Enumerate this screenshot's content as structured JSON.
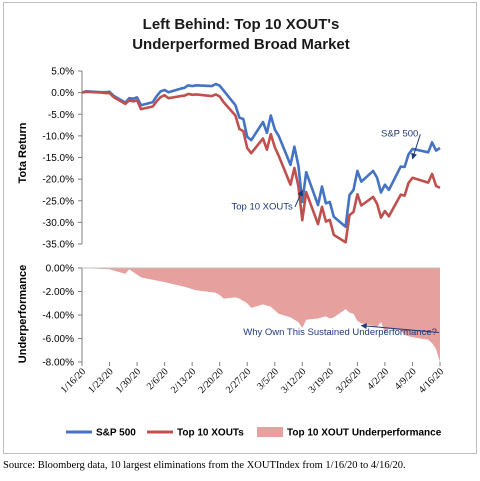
{
  "chart_data": [
    {
      "type": "line",
      "title_line1": "Left Behind: Top 10 XOUT's",
      "title_line2": "Underperformed Broad Market",
      "ylabel": "Tota Return",
      "ylim": [
        -35,
        5
      ],
      "yticks": [
        "5.0%",
        "0.0%",
        "-5.0%",
        "-10.0%",
        "-15.0%",
        "-20.0%",
        "-25.0%",
        "-30.0%",
        "-35.0%"
      ],
      "x_start": "2020-01-16",
      "x_end": "2020-04-16",
      "series": [
        {
          "name": "S&P 500",
          "color": "#4472c4",
          "points": [
            [
              "2020-01-16",
              0
            ],
            [
              "2020-01-17",
              0.3
            ],
            [
              "2020-01-21",
              0.1
            ],
            [
              "2020-01-22",
              0.1
            ],
            [
              "2020-01-23",
              0.2
            ],
            [
              "2020-01-24",
              -0.7
            ],
            [
              "2020-01-27",
              -2.3
            ],
            [
              "2020-01-28",
              -1.3
            ],
            [
              "2020-01-29",
              -1.4
            ],
            [
              "2020-01-30",
              -1.1
            ],
            [
              "2020-01-31",
              -2.9
            ],
            [
              "2020-02-03",
              -2.2
            ],
            [
              "2020-02-04",
              -0.8
            ],
            [
              "2020-02-05",
              0.3
            ],
            [
              "2020-02-06",
              0.6
            ],
            [
              "2020-02-07",
              0.1
            ],
            [
              "2020-02-10",
              0.9
            ],
            [
              "2020-02-11",
              1.1
            ],
            [
              "2020-02-12",
              1.7
            ],
            [
              "2020-02-13",
              1.5
            ],
            [
              "2020-02-14",
              1.7
            ],
            [
              "2020-02-18",
              1.5
            ],
            [
              "2020-02-19",
              2.0
            ],
            [
              "2020-02-20",
              1.6
            ],
            [
              "2020-02-21",
              0.5
            ],
            [
              "2020-02-24",
              -2.9
            ],
            [
              "2020-02-25",
              -5.8
            ],
            [
              "2020-02-26",
              -6.1
            ],
            [
              "2020-02-27",
              -10.2
            ],
            [
              "2020-02-28",
              -11.0
            ],
            [
              "2020-03-02",
              -6.8
            ],
            [
              "2020-03-03",
              -9.3
            ],
            [
              "2020-03-04",
              -5.3
            ],
            [
              "2020-03-05",
              -8.5
            ],
            [
              "2020-03-06",
              -10.0
            ],
            [
              "2020-03-09",
              -16.7
            ],
            [
              "2020-03-10",
              -12.5
            ],
            [
              "2020-03-11",
              -16.9
            ],
            [
              "2020-03-12",
              -25.3
            ],
            [
              "2020-03-13",
              -18.4
            ],
            [
              "2020-03-16",
              -26.0
            ],
            [
              "2020-03-17",
              -21.7
            ],
            [
              "2020-03-18",
              -25.6
            ],
            [
              "2020-03-19",
              -25.3
            ],
            [
              "2020-03-20",
              -28.7
            ],
            [
              "2020-03-23",
              -31.0
            ],
            [
              "2020-03-24",
              -23.7
            ],
            [
              "2020-03-25",
              -22.5
            ],
            [
              "2020-03-26",
              -18.1
            ],
            [
              "2020-03-27",
              -20.6
            ],
            [
              "2020-03-30",
              -18.1
            ],
            [
              "2020-03-31",
              -19.7
            ],
            [
              "2020-04-01",
              -23.1
            ],
            [
              "2020-04-02",
              -21.3
            ],
            [
              "2020-04-03",
              -22.5
            ],
            [
              "2020-04-06",
              -17.1
            ],
            [
              "2020-04-07",
              -17.2
            ],
            [
              "2020-04-08",
              -14.3
            ],
            [
              "2020-04-09",
              -13.0
            ],
            [
              "2020-04-13",
              -13.8
            ],
            [
              "2020-04-14",
              -11.5
            ],
            [
              "2020-04-15",
              -13.4
            ],
            [
              "2020-04-16",
              -12.8
            ]
          ]
        },
        {
          "name": "Top 10 XOUTs",
          "color": "#c0504d",
          "points": [
            [
              "2020-01-16",
              0
            ],
            [
              "2020-01-17",
              0.2
            ],
            [
              "2020-01-21",
              0
            ],
            [
              "2020-01-22",
              -0.1
            ],
            [
              "2020-01-23",
              -0.1
            ],
            [
              "2020-01-24",
              -1.0
            ],
            [
              "2020-01-27",
              -2.6
            ],
            [
              "2020-01-28",
              -1.8
            ],
            [
              "2020-01-29",
              -2.0
            ],
            [
              "2020-01-30",
              -1.8
            ],
            [
              "2020-01-31",
              -3.8
            ],
            [
              "2020-02-03",
              -3.2
            ],
            [
              "2020-02-04",
              -2.0
            ],
            [
              "2020-02-05",
              -1.0
            ],
            [
              "2020-02-06",
              -0.6
            ],
            [
              "2020-02-07",
              -1.3
            ],
            [
              "2020-02-10",
              -0.8
            ],
            [
              "2020-02-11",
              -0.7
            ],
            [
              "2020-02-12",
              -0.3
            ],
            [
              "2020-02-13",
              -0.5
            ],
            [
              "2020-02-14",
              -0.4
            ],
            [
              "2020-02-18",
              -0.8
            ],
            [
              "2020-02-19",
              -0.4
            ],
            [
              "2020-02-20",
              -0.9
            ],
            [
              "2020-02-21",
              -2.2
            ],
            [
              "2020-02-24",
              -5.3
            ],
            [
              "2020-02-25",
              -8.4
            ],
            [
              "2020-02-26",
              -8.9
            ],
            [
              "2020-02-27",
              -12.8
            ],
            [
              "2020-02-28",
              -14.0
            ],
            [
              "2020-03-02",
              -10.6
            ],
            [
              "2020-03-03",
              -13.2
            ],
            [
              "2020-03-04",
              -9.6
            ],
            [
              "2020-03-05",
              -12.6
            ],
            [
              "2020-03-06",
              -14.6
            ],
            [
              "2020-03-09",
              -21.3
            ],
            [
              "2020-03-10",
              -17.4
            ],
            [
              "2020-03-11",
              -21.7
            ],
            [
              "2020-03-12",
              -29.5
            ],
            [
              "2020-03-13",
              -23.0
            ],
            [
              "2020-03-16",
              -30.4
            ],
            [
              "2020-03-17",
              -26.4
            ],
            [
              "2020-03-18",
              -29.8
            ],
            [
              "2020-03-19",
              -29.4
            ],
            [
              "2020-03-20",
              -32.9
            ],
            [
              "2020-03-23",
              -34.6
            ],
            [
              "2020-03-24",
              -28.3
            ],
            [
              "2020-03-25",
              -27.6
            ],
            [
              "2020-03-26",
              -23.5
            ],
            [
              "2020-03-27",
              -26.1
            ],
            [
              "2020-03-30",
              -24.1
            ],
            [
              "2020-03-31",
              -25.7
            ],
            [
              "2020-04-01",
              -28.9
            ],
            [
              "2020-04-02",
              -27.4
            ],
            [
              "2020-04-03",
              -28.6
            ],
            [
              "2020-04-06",
              -23.6
            ],
            [
              "2020-04-07",
              -23.8
            ],
            [
              "2020-04-08",
              -20.9
            ],
            [
              "2020-04-09",
              -19.7
            ],
            [
              "2020-04-13",
              -20.8
            ],
            [
              "2020-04-14",
              -18.8
            ],
            [
              "2020-04-15",
              -21.6
            ],
            [
              "2020-04-16",
              -22.0
            ]
          ]
        }
      ],
      "annotations": [
        {
          "text": "S&P 500",
          "date": "2020-04-01",
          "value": -10.2,
          "arrow_to_date": "2020-04-09",
          "arrow_to_value": -15.3
        },
        {
          "text": "Top 10 XOUTs",
          "date": "2020-02-23",
          "value": -27.0,
          "arrow_to_date": "2020-03-12",
          "arrow_to_value": -22.6
        }
      ]
    },
    {
      "type": "area",
      "ylabel": "Underperformance",
      "ylim": [
        -8,
        0
      ],
      "yticks": [
        "0.00%",
        "-2.00%",
        "-4.00%",
        "-6.00%",
        "-8.00%"
      ],
      "series": [
        {
          "name": "Top 10 XOUT Underperformance",
          "color": "#e6a09e",
          "points": [
            [
              "2020-01-16",
              0
            ],
            [
              "2020-01-23",
              -0.1
            ],
            [
              "2020-01-27",
              -0.5
            ],
            [
              "2020-01-28",
              -0.1
            ],
            [
              "2020-01-31",
              -0.8
            ],
            [
              "2020-02-03",
              -1.0
            ],
            [
              "2020-02-06",
              -1.2
            ],
            [
              "2020-02-11",
              -1.6
            ],
            [
              "2020-02-14",
              -1.9
            ],
            [
              "2020-02-19",
              -2.1
            ],
            [
              "2020-02-20",
              -2.3
            ],
            [
              "2020-02-21",
              -2.6
            ],
            [
              "2020-02-24",
              -2.5
            ],
            [
              "2020-02-25",
              -2.6
            ],
            [
              "2020-02-27",
              -3.0
            ],
            [
              "2020-02-28",
              -3.4
            ],
            [
              "2020-03-02",
              -3.1
            ],
            [
              "2020-03-04",
              -3.3
            ],
            [
              "2020-03-06",
              -3.9
            ],
            [
              "2020-03-09",
              -4.2
            ],
            [
              "2020-03-11",
              -4.6
            ],
            [
              "2020-03-12",
              -5.1
            ],
            [
              "2020-03-13",
              -4.4
            ],
            [
              "2020-03-16",
              -4.3
            ],
            [
              "2020-03-18",
              -4.1
            ],
            [
              "2020-03-19",
              -4.3
            ],
            [
              "2020-03-20",
              -4.2
            ],
            [
              "2020-03-23",
              -3.5
            ],
            [
              "2020-03-24",
              -3.8
            ],
            [
              "2020-03-25",
              -3.9
            ],
            [
              "2020-03-26",
              -4.5
            ],
            [
              "2020-03-27",
              -4.7
            ],
            [
              "2020-03-31",
              -5.0
            ],
            [
              "2020-04-01",
              -4.6
            ],
            [
              "2020-04-02",
              -5.5
            ],
            [
              "2020-04-03",
              -5.2
            ],
            [
              "2020-04-06",
              -5.3
            ],
            [
              "2020-04-07",
              -5.7
            ],
            [
              "2020-04-08",
              -5.8
            ],
            [
              "2020-04-09",
              -5.9
            ],
            [
              "2020-04-13",
              -6.1
            ],
            [
              "2020-04-14",
              -6.4
            ],
            [
              "2020-04-15",
              -6.9
            ],
            [
              "2020-04-16",
              -8.0
            ]
          ]
        }
      ],
      "annotations": [
        {
          "text": "Why Own This Sustained Underperformance?",
          "date": "2020-02-26",
          "value": -5.7,
          "arrow_to_date": "2020-03-27",
          "arrow_to_value": -4.9
        }
      ]
    }
  ],
  "x_axis": {
    "tick_labels": [
      "1/16/20",
      "1/23/20",
      "1/30/20",
      "2/6/20",
      "2/13/20",
      "2/20/20",
      "2/27/20",
      "3/5/20",
      "3/12/20",
      "3/19/20",
      "3/26/20",
      "4/2/20",
      "4/9/20",
      "4/16/20"
    ],
    "tick_dates": [
      "2020-01-16",
      "2020-01-23",
      "2020-01-30",
      "2020-02-06",
      "2020-02-13",
      "2020-02-20",
      "2020-02-27",
      "2020-03-05",
      "2020-03-12",
      "2020-03-19",
      "2020-03-26",
      "2020-04-02",
      "2020-04-09",
      "2020-04-16"
    ]
  },
  "legend": {
    "placement": "bottom",
    "items": [
      {
        "label": "S&P 500",
        "color": "#4472c4",
        "kind": "line"
      },
      {
        "label": "Top 10 XOUTs",
        "color": "#c0504d",
        "kind": "line"
      },
      {
        "label": "Top 10 XOUT Underperformance",
        "color": "#e6a09e",
        "kind": "area"
      }
    ]
  },
  "source": "Source: Bloomberg data, 10 largest eliminations from the XOUTIndex from 1/16/20 to 4/16/20."
}
